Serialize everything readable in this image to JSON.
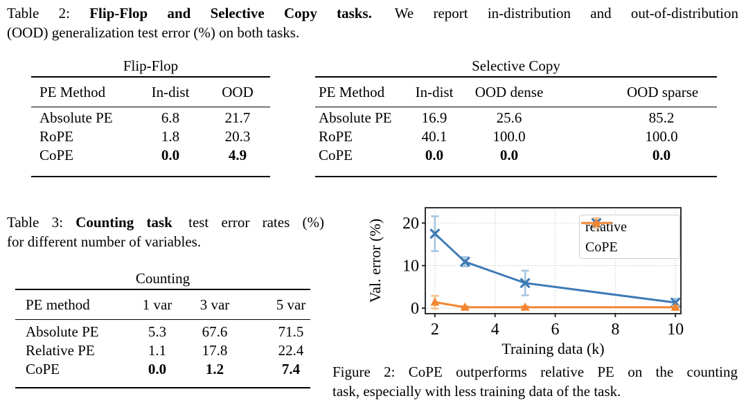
{
  "caption_table2": {
    "prefix": "Table 2:",
    "bold": "Flip-Flop and Selective Copy tasks.",
    "line1_rest": "We report in-distribution and out-of-distribution",
    "line2": "(OOD) generalization test error (%) on both tasks."
  },
  "tables": {
    "flipflop": {
      "title": "Flip-Flop",
      "headers": [
        "PE Method",
        "In-dist",
        "OOD"
      ],
      "rows": [
        [
          "Absolute PE",
          "6.8",
          "21.7"
        ],
        [
          "RoPE",
          "1.8",
          "20.3"
        ],
        [
          "CoPE",
          "0.0",
          "4.9"
        ]
      ]
    },
    "selective": {
      "title": "Selective Copy",
      "headers": [
        "PE Method",
        "In-dist",
        "OOD dense",
        "OOD sparse"
      ],
      "rows": [
        [
          "Absolute PE",
          "16.9",
          "25.6",
          "85.2"
        ],
        [
          "RoPE",
          "40.1",
          "100.0",
          "100.0"
        ],
        [
          "CoPE",
          "0.0",
          "0.0",
          "0.0"
        ]
      ]
    },
    "counting": {
      "title": "Counting",
      "headers": [
        "PE method",
        "1 var",
        "3 var",
        "5 var"
      ],
      "rows": [
        [
          "Absolute PE",
          "5.3",
          "67.6",
          "71.5"
        ],
        [
          "Relative PE",
          "1.1",
          "17.8",
          "22.4"
        ],
        [
          "CoPE",
          "0.0",
          "1.2",
          "7.4"
        ]
      ]
    }
  },
  "caption_table3": {
    "prefix": "Table 3:",
    "bold": "Counting task",
    "line1_rest": "test error rates (%)",
    "line2": "for different number of variables."
  },
  "figure": {
    "chart_data": {
      "type": "line",
      "title": "",
      "xlabel": "Training data (k)",
      "ylabel": "Val. error (%)",
      "xlim": [
        1.68,
        10.18
      ],
      "ylim": [
        -1.3,
        23.6
      ],
      "xticks": [
        2,
        4,
        6,
        8,
        10
      ],
      "yticks": [
        0,
        10,
        20
      ],
      "grid": true,
      "legend_position": "upper right",
      "axis_color": "#1a1a1a",
      "grid_color": "#b3b3b3",
      "series": [
        {
          "name": "relative",
          "marker": "x",
          "color": "#3d7ab5",
          "light_color": "#a5c5e0",
          "x": [
            2,
            3,
            5,
            10
          ],
          "y": [
            17.5,
            10.9,
            5.9,
            1.3
          ],
          "yerr": [
            4.1,
            1.1,
            2.9,
            0.9
          ]
        },
        {
          "name": "CoPE",
          "marker": "triangle",
          "color": "#f28632",
          "light_color": "#f9c289",
          "x": [
            2,
            3,
            5,
            10
          ],
          "y": [
            1.4,
            0.2,
            0.2,
            0.2
          ],
          "yerr": [
            1.5,
            0.3,
            0.3,
            0.3
          ]
        }
      ]
    }
  },
  "caption_figure2": {
    "line1": "Figure 2: CoPE outperforms relative PE on the counting",
    "line2": "task, especially with less training data of the task."
  }
}
